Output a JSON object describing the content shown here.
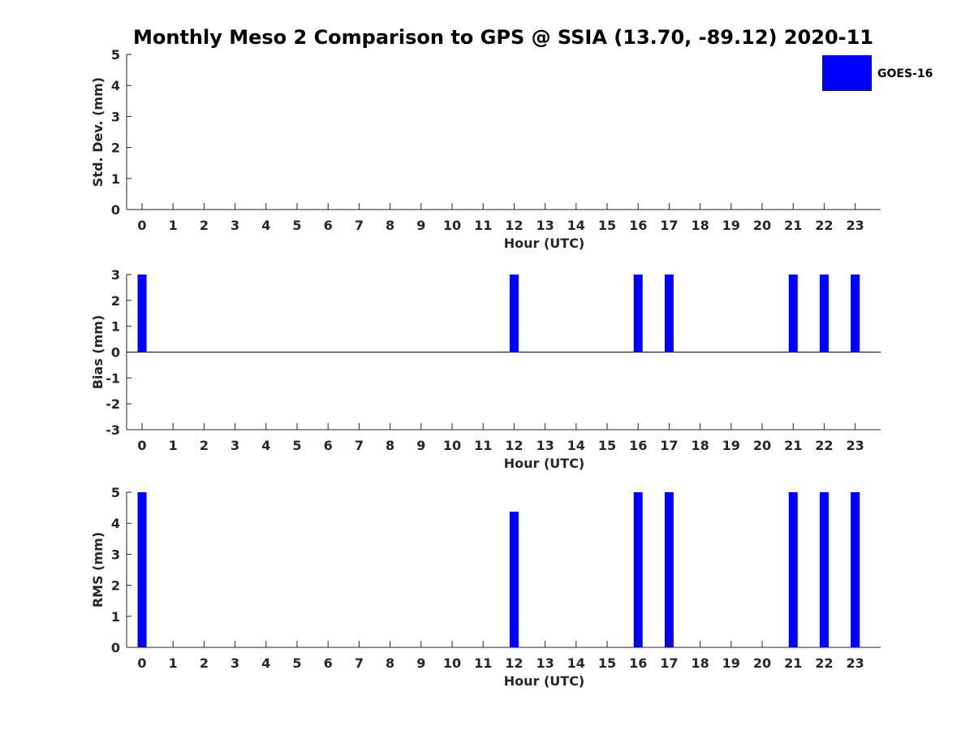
{
  "title": "Monthly Meso 2 Comparison to GPS @ SSIA (13.70, -89.12) 2020-11",
  "legend": {
    "label": "GOES-16",
    "color": "#0000ff"
  },
  "chart_data": [
    {
      "type": "bar",
      "name": "std-dev",
      "xlabel": "Hour (UTC)",
      "ylabel": "Std. Dev. (mm)",
      "categories": [
        "0",
        "1",
        "2",
        "3",
        "4",
        "5",
        "6",
        "7",
        "8",
        "9",
        "10",
        "11",
        "12",
        "13",
        "14",
        "15",
        "16",
        "17",
        "18",
        "19",
        "20",
        "21",
        "22",
        "23"
      ],
      "ylim": [
        0,
        5
      ],
      "yticks": [
        "0",
        "1",
        "2",
        "3",
        "4",
        "5"
      ],
      "series": [
        {
          "name": "GOES-16",
          "values": [
            0,
            0,
            0,
            0,
            0,
            0,
            0,
            0,
            0,
            0,
            0,
            0,
            0,
            0,
            0,
            0,
            0,
            0,
            0,
            0,
            0,
            0,
            0,
            0
          ]
        }
      ]
    },
    {
      "type": "bar",
      "name": "bias",
      "xlabel": "Hour (UTC)",
      "ylabel": "Bias (mm)",
      "categories": [
        "0",
        "1",
        "2",
        "3",
        "4",
        "5",
        "6",
        "7",
        "8",
        "9",
        "10",
        "11",
        "12",
        "13",
        "14",
        "15",
        "16",
        "17",
        "18",
        "19",
        "20",
        "21",
        "22",
        "23"
      ],
      "ylim": [
        -3,
        3
      ],
      "yticks": [
        "-3",
        "-2",
        "-1",
        "0",
        "1",
        "2",
        "3"
      ],
      "zero_line": true,
      "series": [
        {
          "name": "GOES-16",
          "values": [
            3,
            0,
            0,
            0,
            0,
            0,
            0,
            0,
            0,
            0,
            0,
            0,
            3,
            0,
            0,
            0,
            3,
            3,
            0,
            0,
            0,
            3,
            3,
            3
          ]
        }
      ]
    },
    {
      "type": "bar",
      "name": "rms",
      "xlabel": "Hour (UTC)",
      "ylabel": "RMS (mm)",
      "categories": [
        "0",
        "1",
        "2",
        "3",
        "4",
        "5",
        "6",
        "7",
        "8",
        "9",
        "10",
        "11",
        "12",
        "13",
        "14",
        "15",
        "16",
        "17",
        "18",
        "19",
        "20",
        "21",
        "22",
        "23"
      ],
      "ylim": [
        0,
        5
      ],
      "yticks": [
        "0",
        "1",
        "2",
        "3",
        "4",
        "5"
      ],
      "series": [
        {
          "name": "GOES-16",
          "values": [
            5,
            0,
            0,
            0,
            0,
            0,
            0,
            0,
            0,
            0,
            0,
            0,
            4.37,
            0,
            0,
            0,
            5,
            5,
            0,
            0,
            0,
            5,
            5,
            5
          ]
        }
      ]
    }
  ]
}
